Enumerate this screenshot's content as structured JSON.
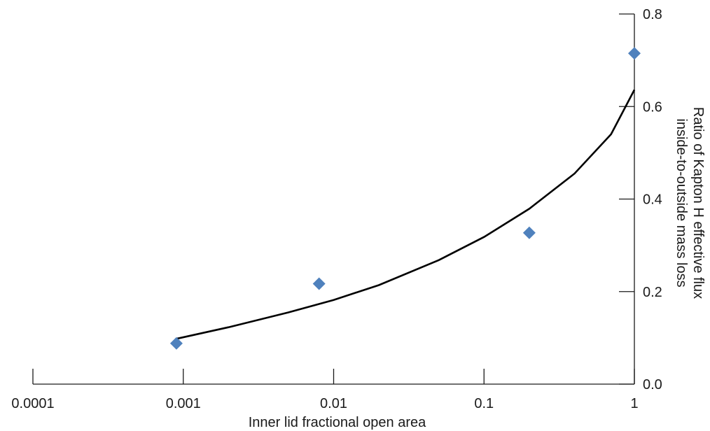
{
  "chart_data": {
    "type": "scatter",
    "title": "",
    "xlabel": "Inner lid fractional open area",
    "ylabel_line1": "Ratio of Kapton H effective flux",
    "ylabel_line2": "inside-to-outside mass loss",
    "x_scale": "log",
    "xlim": [
      0.0001,
      1
    ],
    "ylim": [
      0.0,
      0.8
    ],
    "x_ticks": [
      {
        "value": 0.0001,
        "label": "0.0001"
      },
      {
        "value": 0.001,
        "label": "0.001"
      },
      {
        "value": 0.01,
        "label": "0.01"
      },
      {
        "value": 0.1,
        "label": "0.1"
      },
      {
        "value": 1,
        "label": "1"
      }
    ],
    "y_ticks": [
      {
        "value": 0.0,
        "label": "0.0"
      },
      {
        "value": 0.2,
        "label": "0.2"
      },
      {
        "value": 0.4,
        "label": "0.4"
      },
      {
        "value": 0.6,
        "label": "0.6"
      },
      {
        "value": 0.8,
        "label": "0.8"
      }
    ],
    "y_axis_position": "right",
    "grid": false,
    "legend": "none",
    "marker": "diamond",
    "marker_color": "#4f81bd",
    "line_color": "#000000",
    "points": [
      {
        "x": 0.0009,
        "y": 0.088
      },
      {
        "x": 0.008,
        "y": 0.217
      },
      {
        "x": 0.2,
        "y": 0.327
      },
      {
        "x": 1.0,
        "y": 0.715
      }
    ],
    "fit_curve": {
      "x": [
        0.0009,
        0.002,
        0.005,
        0.01,
        0.02,
        0.05,
        0.1,
        0.2,
        0.4,
        0.7,
        1.0
      ],
      "y": [
        0.098,
        0.123,
        0.155,
        0.182,
        0.214,
        0.268,
        0.318,
        0.379,
        0.455,
        0.54,
        0.636
      ]
    }
  }
}
